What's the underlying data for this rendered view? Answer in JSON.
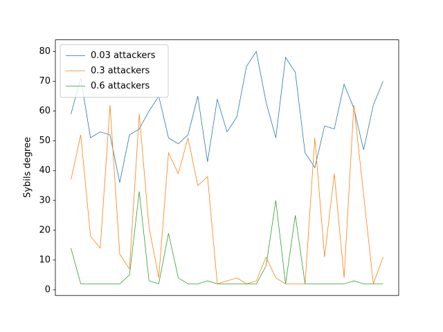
{
  "chart_data": {
    "type": "line",
    "y_label": "Sybils degree",
    "x": [
      0,
      1,
      2,
      3,
      4,
      5,
      6,
      7,
      8,
      9,
      10,
      11,
      12,
      13,
      14,
      15,
      16,
      17,
      18,
      19,
      20,
      21,
      22,
      23,
      24,
      25,
      26,
      27,
      28,
      29,
      30,
      31,
      32
    ],
    "xlim": [
      -1.6,
      33.6
    ],
    "xticks": [],
    "ylim": [
      -1.9,
      83.9
    ],
    "yticks": [
      0,
      10,
      20,
      30,
      40,
      50,
      60,
      70,
      80
    ],
    "legend": "upper left",
    "series": [
      {
        "name": "0.03 attackers",
        "color": "#1f77b4",
        "values": [
          59,
          71,
          51,
          53,
          52,
          36,
          52,
          54,
          60,
          65,
          51,
          49,
          52,
          65,
          43,
          64,
          53,
          58,
          75,
          80,
          63,
          51,
          78,
          73,
          46,
          41,
          55,
          54,
          69,
          61,
          47,
          62,
          70
        ]
      },
      {
        "name": "0.3 attackers",
        "color": "#ff7f0e",
        "values": [
          37,
          52,
          18,
          14,
          62,
          12,
          7,
          59,
          21,
          4,
          46,
          39,
          51,
          35,
          38,
          2,
          3,
          4,
          2,
          3,
          11,
          4,
          2,
          2,
          2,
          51,
          11,
          39,
          4,
          62,
          32,
          2,
          11
        ]
      },
      {
        "name": "0.6 attackers",
        "color": "#2ca02c",
        "values": [
          14,
          2,
          2,
          2,
          2,
          2,
          5,
          33,
          3,
          2,
          19,
          4,
          2,
          2,
          3,
          2,
          2,
          2,
          2,
          2,
          8,
          30,
          2,
          25,
          2,
          2,
          2,
          2,
          2,
          3,
          2,
          2,
          2
        ]
      }
    ]
  }
}
